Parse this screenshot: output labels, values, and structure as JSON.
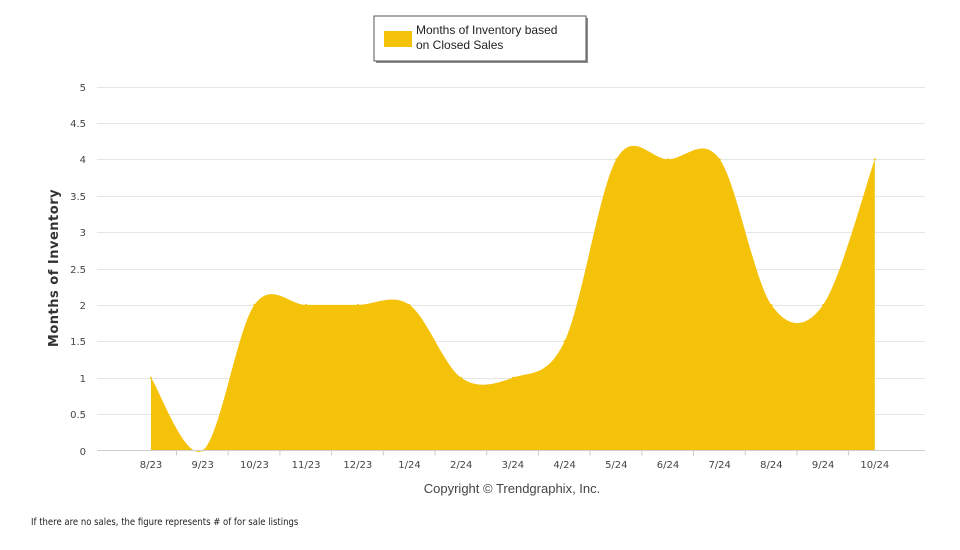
{
  "chart_data": {
    "type": "area",
    "categories": [
      "8/23",
      "9/23",
      "10/23",
      "11/23",
      "12/23",
      "1/24",
      "2/24",
      "3/24",
      "4/24",
      "5/24",
      "6/24",
      "7/24",
      "8/24",
      "9/24",
      "10/24"
    ],
    "series": [
      {
        "name": "Months of Inventory based on Closed Sales",
        "name_lines": [
          "Months of Inventory based",
          "on Closed Sales"
        ],
        "values": [
          1,
          0,
          2,
          2,
          2,
          2,
          1,
          1,
          1.5,
          4,
          4,
          4,
          2,
          2,
          4
        ],
        "color": "#F5C20A"
      }
    ],
    "ylabel": "Months of Inventory",
    "xlabel": "Copyright © Trendgraphix, Inc.",
    "ylim": [
      0,
      5
    ],
    "yticks": [
      0,
      0.5,
      1,
      1.5,
      2,
      2.5,
      3,
      3.5,
      4,
      4.5,
      5
    ],
    "grid": true,
    "legend": "top-center"
  },
  "footnote": "If there are no sales, the figure represents # of for sale listings"
}
